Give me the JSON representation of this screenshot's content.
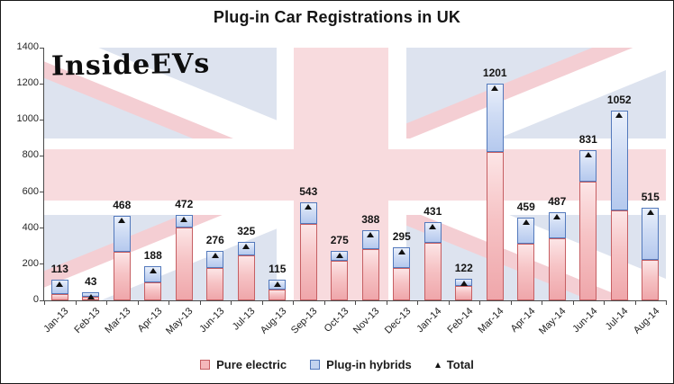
{
  "title": "Plug-in Car Registrations in UK",
  "watermark": "InsideEVs",
  "legend": {
    "pure_electric_label": "Pure electric",
    "plugin_hybrids_label": "Plug-in hybrids",
    "total_label": "Total"
  },
  "y_axis": {
    "tick_labels": [
      "0",
      "200",
      "400",
      "600",
      "800",
      "1000",
      "1200",
      "1400"
    ],
    "min": 0,
    "max": 1400,
    "step": 200
  },
  "colors": {
    "pure_electric_fill": "#f2b0b3",
    "pure_electric_border": "#c65f63",
    "plugin_hybrid_fill": "#c3d3ef",
    "plugin_hybrid_border": "#5379bc",
    "total_marker": "#111111",
    "flag_blue": "#dde3ef",
    "flag_pink": "#f8dbde",
    "flag_diagonal_pink": "#f4ced3"
  },
  "chart_data": {
    "type": "bar",
    "stacked": true,
    "title": "Plug-in Car Registrations in UK",
    "xlabel": "",
    "ylabel": "",
    "ylim": [
      0,
      1400
    ],
    "grid": false,
    "legend_position": "bottom",
    "categories": [
      "Jan-13",
      "Feb-13",
      "Mar-13",
      "Apr-13",
      "May-13",
      "Jun-13",
      "Jul-13",
      "Aug-13",
      "Sep-13",
      "Oct-13",
      "Nov-13",
      "Dec-13",
      "Jan-14",
      "Feb-14",
      "Mar-14",
      "Apr-14",
      "May-14",
      "Jun-14",
      "Jul-14",
      "Aug-14"
    ],
    "series": [
      {
        "name": "Pure electric",
        "values": [
          35,
          20,
          270,
          100,
          405,
          180,
          250,
          60,
          425,
          218,
          285,
          180,
          320,
          80,
          820,
          315,
          345,
          660,
          497,
          225
        ]
      },
      {
        "name": "Plug-in hybrids",
        "values": [
          78,
          23,
          198,
          88,
          67,
          96,
          75,
          55,
          118,
          57,
          103,
          115,
          111,
          42,
          381,
          144,
          142,
          171,
          555,
          290
        ]
      },
      {
        "name": "Total",
        "marker": "triangle",
        "values": [
          113,
          43,
          468,
          188,
          472,
          276,
          325,
          115,
          543,
          275,
          388,
          295,
          431,
          122,
          1201,
          459,
          487,
          831,
          1052,
          515
        ]
      }
    ],
    "data_labels": [
      113,
      43,
      468,
      188,
      472,
      276,
      325,
      115,
      543,
      275,
      388,
      295,
      431,
      122,
      1201,
      459,
      487,
      831,
      1052,
      515
    ]
  }
}
